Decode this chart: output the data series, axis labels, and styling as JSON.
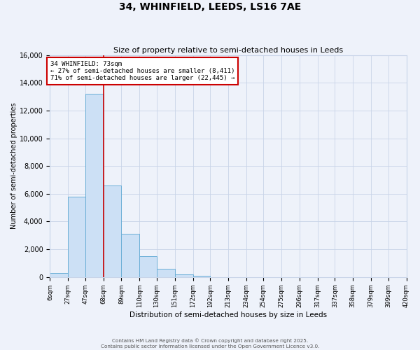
{
  "title": "34, WHINFIELD, LEEDS, LS16 7AE",
  "subtitle": "Size of property relative to semi-detached houses in Leeds",
  "xlabel": "Distribution of semi-detached houses by size in Leeds",
  "ylabel": "Number of semi-detached properties",
  "bar_labels": [
    "6sqm",
    "27sqm",
    "47sqm",
    "68sqm",
    "89sqm",
    "110sqm",
    "130sqm",
    "151sqm",
    "172sqm",
    "192sqm",
    "213sqm",
    "234sqm",
    "254sqm",
    "275sqm",
    "296sqm",
    "317sqm",
    "337sqm",
    "358sqm",
    "379sqm",
    "399sqm",
    "420sqm"
  ],
  "bar_values": [
    300,
    5800,
    13200,
    6600,
    3100,
    1500,
    600,
    200,
    100,
    0,
    0,
    0,
    0,
    0,
    0,
    0,
    0,
    0,
    0,
    0
  ],
  "bin_edges": [
    6,
    27,
    47,
    68,
    89,
    110,
    130,
    151,
    172,
    192,
    213,
    234,
    254,
    275,
    296,
    317,
    337,
    358,
    379,
    399,
    420
  ],
  "bar_color": "#cce0f5",
  "bar_edgecolor": "#6aaed6",
  "vline_x": 68,
  "vline_color": "#cc0000",
  "annotation_title": "34 WHINFIELD: 73sqm",
  "annotation_line1": "← 27% of semi-detached houses are smaller (8,411)",
  "annotation_line2": "71% of semi-detached houses are larger (22,445) →",
  "annotation_box_color": "#cc0000",
  "annotation_bg_color": "#ffffff",
  "ylim": [
    0,
    16000
  ],
  "yticks": [
    0,
    2000,
    4000,
    6000,
    8000,
    10000,
    12000,
    14000,
    16000
  ],
  "grid_color": "#c8d4e8",
  "background_color": "#eef2fa",
  "footer1": "Contains HM Land Registry data © Crown copyright and database right 2025.",
  "footer2": "Contains public sector information licensed under the Open Government Licence v3.0."
}
